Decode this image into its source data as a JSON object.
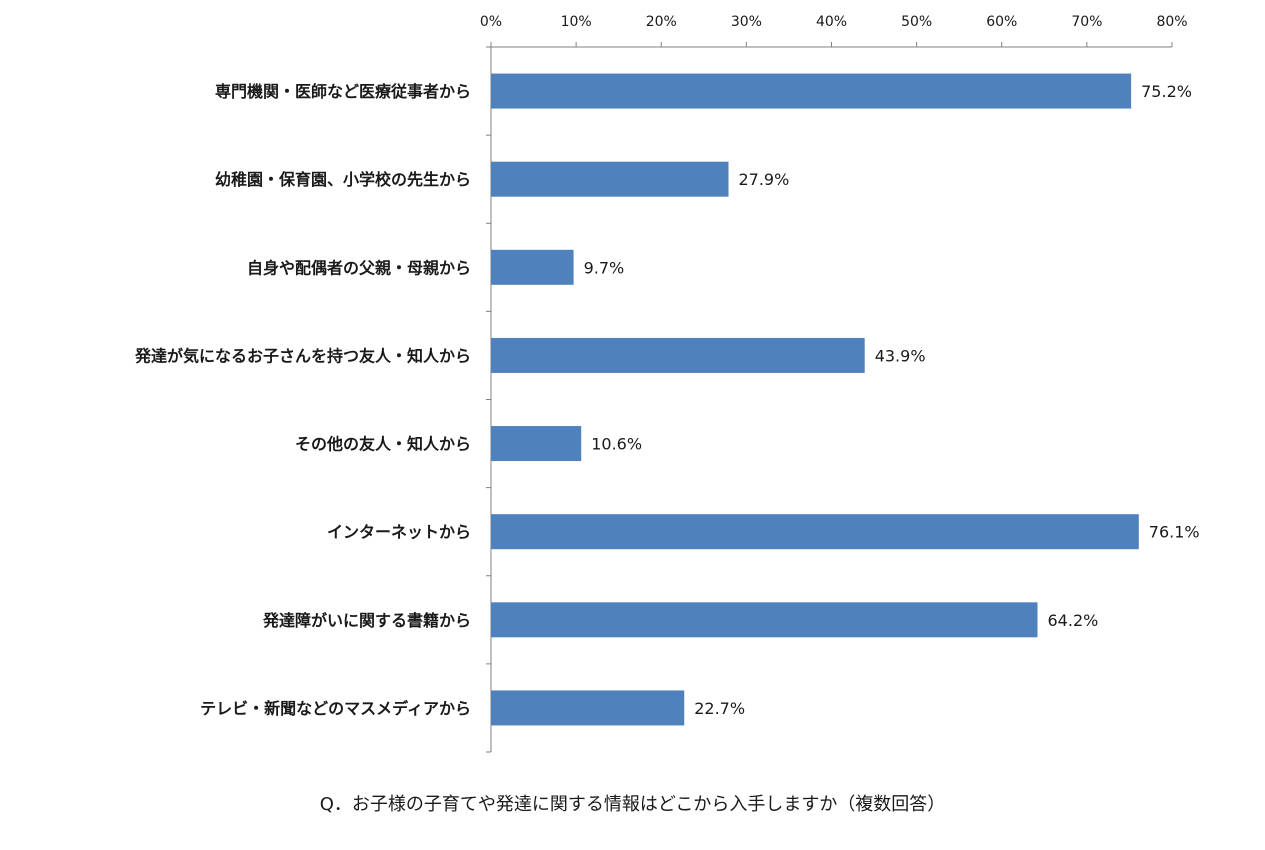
{
  "chart_data": {
    "type": "bar",
    "orientation": "horizontal",
    "categories": [
      "専門機関・医師など医療従事者から",
      "幼稚園・保育園、小学校の先生から",
      "自身や配偶者の父親・母親から",
      "発達が気になるお子さんを持つ友人・知人から",
      "その他の友人・知人から",
      "インターネットから",
      "発達障がいに関する書籍から",
      "テレビ・新聞などのマスメディアから"
    ],
    "values": [
      75.2,
      27.9,
      9.7,
      43.9,
      10.6,
      76.1,
      64.2,
      22.7
    ],
    "value_labels": [
      "75.2%",
      "27.9%",
      "9.7%",
      "43.9%",
      "10.6%",
      "76.1%",
      "64.2%",
      "22.7%"
    ],
    "xlim": [
      0,
      80
    ],
    "x_ticks": [
      0,
      10,
      20,
      30,
      40,
      50,
      60,
      70,
      80
    ],
    "x_tick_labels": [
      "0%",
      "10%",
      "20%",
      "30%",
      "40%",
      "50%",
      "60%",
      "70%",
      "80%"
    ],
    "x_axis_position": "top",
    "grid": false,
    "legend": "none",
    "bar_color": "#4f81bd",
    "caption": "Q．お子様の子育てや発達に関する情報はどこから入手しますか（複数回答）"
  }
}
